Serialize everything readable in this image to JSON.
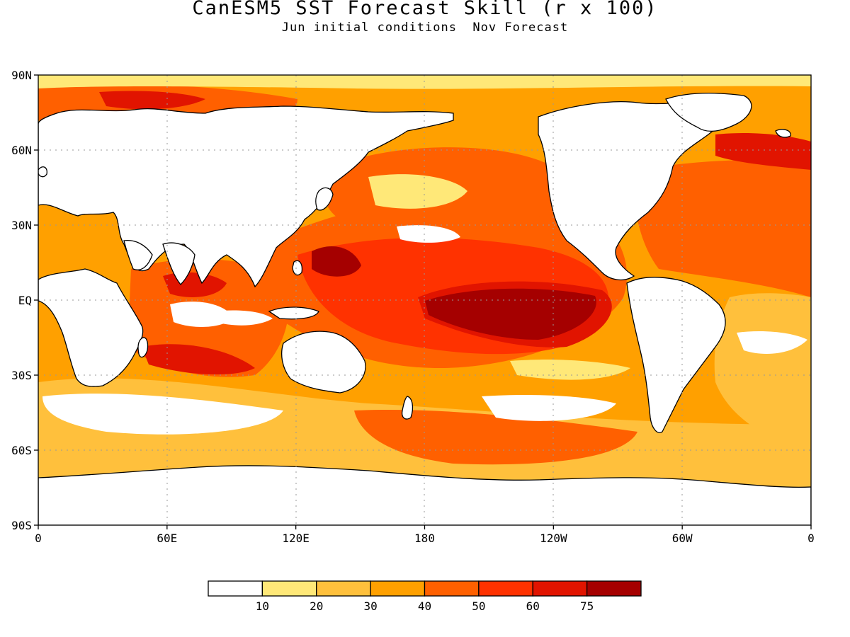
{
  "title": "CanESM5 SST Forecast Skill (r x 100)",
  "subtitle": "Jun initial conditions  Nov Forecast",
  "map": {
    "type": "global-sst-skill-map",
    "projection": "cylindrical-equidistant",
    "lon_range": [
      0,
      360
    ],
    "lat_range": [
      -90,
      90
    ],
    "lat_tick_labels": [
      "90N",
      "60N",
      "30N",
      "EQ",
      "30S",
      "60S",
      "90S"
    ],
    "lat_tick_values": [
      90,
      60,
      30,
      0,
      -30,
      -60,
      -90
    ],
    "lon_tick_labels": [
      "0",
      "60E",
      "120E",
      "180",
      "120W",
      "60W",
      "0"
    ],
    "lon_tick_values": [
      0,
      60,
      120,
      180,
      240,
      300,
      360
    ],
    "gridlines": "dotted"
  },
  "colorbar": {
    "levels": [
      "10",
      "20",
      "30",
      "40",
      "50",
      "60",
      "75"
    ],
    "colors": [
      "#ffffff",
      "#ffe878",
      "#ffc03c",
      "#ffa000",
      "#ff6000",
      "#ff3200",
      "#e11400",
      "#a50000"
    ]
  }
}
